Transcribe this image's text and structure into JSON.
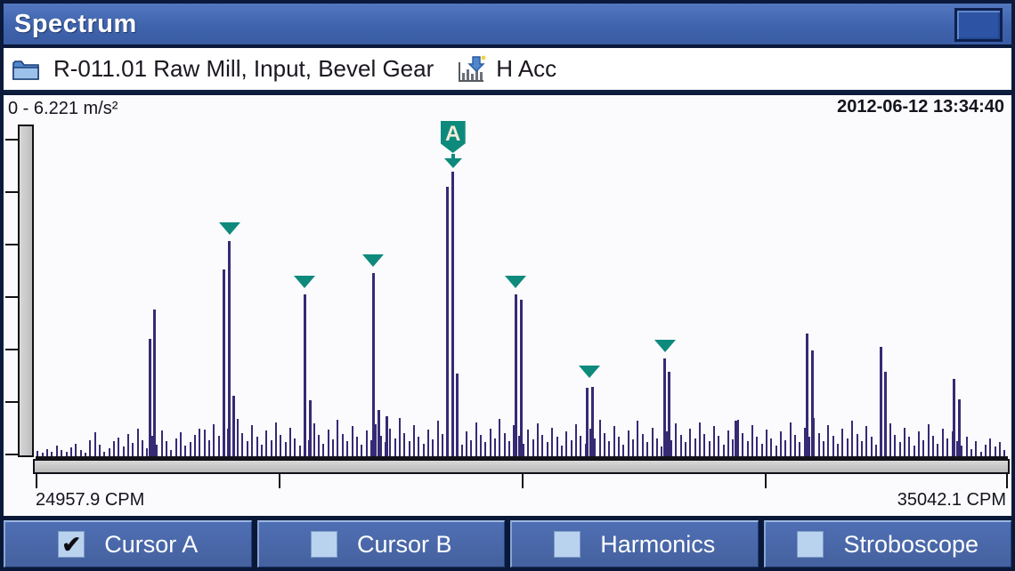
{
  "window": {
    "title": "Spectrum"
  },
  "header": {
    "path_label": "R-011.01 Raw Mill, Input, Bevel Gear",
    "measurement_label": "H Acc"
  },
  "chart": {
    "range_label": "0  -  6.221 m/s²",
    "timestamp": "2012-06-12 13:34:40",
    "x_min_label": "24957.9 CPM",
    "x_max_label": "35042.1 CPM"
  },
  "toolbar": {
    "buttons": [
      {
        "label": "Cursor A",
        "checked": true,
        "check_glyph": "✔"
      },
      {
        "label": "Cursor B",
        "checked": false,
        "check_glyph": ""
      },
      {
        "label": "Harmonics",
        "checked": false,
        "check_glyph": ""
      },
      {
        "label": "Stroboscope",
        "checked": false,
        "check_glyph": ""
      }
    ]
  },
  "colors": {
    "titlebar_blue": "#3f63ac",
    "toolbar_blue": "#4a68ac",
    "checkbox_blue": "#b9d2ee",
    "bar_purple": "#372a74",
    "marker_teal": "#0e8a7d",
    "axis_gray": "#c6c6c6"
  },
  "chart_data": {
    "type": "bar",
    "title": "Vibration spectrum",
    "x_unit": "CPM",
    "y_unit": "m/s²",
    "x_range": [
      24957.9,
      35042.1
    ],
    "y_range": [
      0,
      6.221
    ],
    "layout": {
      "y_ticks": 7,
      "x_ticks": 5,
      "grid": false
    },
    "cursor_a": {
      "label": "A",
      "cpm": 29286.2,
      "amp": 5.33
    },
    "marked_peaks": [
      [
        26969.2,
        4.03
      ],
      [
        27747.7,
        3.04
      ],
      [
        28461.4,
        3.43
      ],
      [
        29935.1,
        3.04
      ],
      [
        30704.4,
        1.35
      ],
      [
        31483.1,
        1.84
      ]
    ],
    "peaks": [
      [
        26144.4,
        2.2
      ],
      [
        26190.7,
        2.75
      ],
      [
        26913.6,
        3.5
      ],
      [
        26969.2,
        4.03
      ],
      [
        27015.6,
        1.14
      ],
      [
        27747.7,
        3.04
      ],
      [
        27803.3,
        1.05
      ],
      [
        28461.4,
        3.43
      ],
      [
        28517.0,
        0.87
      ],
      [
        28600.5,
        0.75
      ],
      [
        29230.6,
        5.05
      ],
      [
        29286.2,
        5.33
      ],
      [
        29332.6,
        1.55
      ],
      [
        29935.1,
        3.04
      ],
      [
        29990.7,
        2.94
      ],
      [
        30676.6,
        1.28
      ],
      [
        30732.2,
        1.3
      ],
      [
        31483.1,
        1.84
      ],
      [
        31529.4,
        1.58
      ],
      [
        32224.6,
        0.67
      ],
      [
        32956.8,
        2.31
      ],
      [
        33012.4,
        1.99
      ],
      [
        33726.1,
        2.06
      ],
      [
        33772.4,
        1.59
      ],
      [
        34486.2,
        1.45
      ],
      [
        34541.8,
        1.07
      ]
    ],
    "noise": {
      "start_cpm": 24980,
      "step_cpm": 49.4,
      "amps": [
        0.1,
        0.06,
        0.14,
        0.08,
        0.2,
        0.12,
        0.09,
        0.16,
        0.24,
        0.11,
        0.07,
        0.3,
        0.45,
        0.22,
        0.09,
        0.15,
        0.28,
        0.35,
        0.18,
        0.42,
        0.25,
        0.52,
        0.3,
        0.15,
        0.38,
        0.22,
        0.48,
        0.28,
        0.12,
        0.33,
        0.45,
        0.2,
        0.26,
        0.4,
        0.52,
        0.5,
        0.3,
        0.6,
        0.38,
        0.24,
        0.52,
        0.34,
        0.7,
        0.44,
        0.28,
        0.58,
        0.36,
        0.22,
        0.48,
        0.3,
        0.64,
        0.4,
        0.26,
        0.54,
        0.34,
        0.2,
        0.46,
        0.3,
        0.62,
        0.4,
        0.24,
        0.5,
        0.32,
        0.68,
        0.42,
        0.28,
        0.56,
        0.36,
        0.22,
        0.48,
        0.3,
        0.6,
        0.38,
        0.26,
        0.52,
        0.34,
        0.72,
        0.44,
        0.28,
        0.58,
        0.36,
        0.24,
        0.5,
        0.32,
        0.66,
        0.42,
        0.28,
        0.56,
        0.36,
        0.22,
        0.46,
        0.3,
        0.64,
        0.4,
        0.26,
        0.52,
        0.34,
        0.7,
        0.44,
        0.28,
        0.58,
        0.38,
        0.24,
        0.5,
        0.32,
        0.62,
        0.4,
        0.26,
        0.54,
        0.36,
        0.2,
        0.46,
        0.3,
        0.6,
        0.38,
        0.24,
        0.52,
        0.34,
        0.68,
        0.44,
        0.28,
        0.56,
        0.36,
        0.22,
        0.48,
        0.32,
        0.66,
        0.42,
        0.26,
        0.54,
        0.34,
        0.18,
        0.46,
        0.3,
        0.62,
        0.4,
        0.26,
        0.52,
        0.34,
        0.64,
        0.42,
        0.28,
        0.56,
        0.38,
        0.22,
        0.48,
        0.32,
        0.68,
        0.44,
        0.28,
        0.58,
        0.36,
        0.24,
        0.5,
        0.34,
        0.2,
        0.46,
        0.3,
        0.64,
        0.4,
        0.26,
        0.54,
        0.36,
        0.72,
        0.44,
        0.28,
        0.58,
        0.38,
        0.24,
        0.52,
        0.34,
        0.66,
        0.42,
        0.28,
        0.56,
        0.36,
        0.22,
        0.48,
        0.32,
        0.62,
        0.4,
        0.26,
        0.54,
        0.36,
        0.2,
        0.46,
        0.3,
        0.6,
        0.38,
        0.24,
        0.52,
        0.34,
        0.46,
        0.28,
        0.2,
        0.36,
        0.14,
        0.28,
        0.08,
        0.22,
        0.34,
        0.18,
        0.26,
        0.12
      ]
    }
  }
}
